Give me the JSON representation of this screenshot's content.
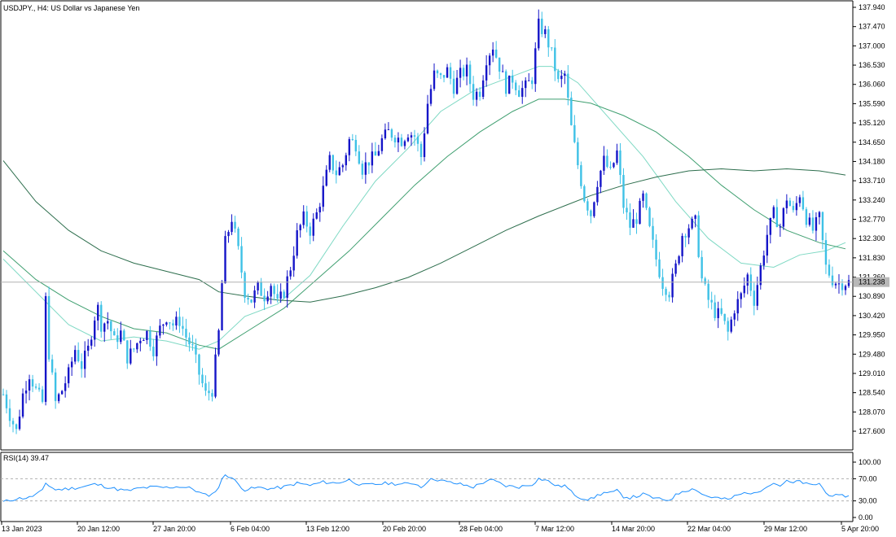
{
  "chart_data": [
    {
      "type": "candlestick",
      "title": "USDJPY., H4:  US Dollar vs Japanese Yen",
      "symbol": "USDJPY.",
      "timeframe": "H4",
      "ylim": [
        127.2,
        138.2
      ],
      "y_ticks": [
        "137.940",
        "137.470",
        "137.000",
        "136.530",
        "136.060",
        "135.590",
        "135.120",
        "134.650",
        "134.180",
        "133.710",
        "133.240",
        "132.770",
        "132.300",
        "131.830",
        "131.360",
        "130.890",
        "130.420",
        "129.950",
        "129.480",
        "129.010",
        "128.540",
        "128.070",
        "127.600"
      ],
      "current_price": "131.238",
      "x_labels": [
        "13 Jan 2023",
        "20 Jan 12:00",
        "27 Jan 20:00",
        "6 Feb 04:00",
        "13 Feb 12:00",
        "20 Feb 20:00",
        "28 Feb 04:00",
        "7 Mar 12:00",
        "14 Mar 20:00",
        "22 Mar 04:00",
        "29 Mar 12:00",
        "5 Apr 20:00"
      ],
      "grid": false,
      "close_path": [
        [
          0,
          128.5
        ],
        [
          2,
          128.0
        ],
        [
          4,
          127.6
        ],
        [
          6,
          128.5
        ],
        [
          8,
          129.0
        ],
        [
          10,
          128.6
        ],
        [
          12,
          128.3
        ],
        [
          13,
          130.8
        ],
        [
          14,
          129.5
        ],
        [
          16,
          128.3
        ],
        [
          18,
          128.6
        ],
        [
          20,
          129.0
        ],
        [
          22,
          129.6
        ],
        [
          24,
          129.2
        ],
        [
          26,
          129.6
        ],
        [
          28,
          130.4
        ],
        [
          29,
          130.6
        ],
        [
          30,
          130.2
        ],
        [
          32,
          130.3
        ],
        [
          34,
          129.8
        ],
        [
          36,
          130.0
        ],
        [
          38,
          129.4
        ],
        [
          40,
          129.6
        ],
        [
          42,
          129.9
        ],
        [
          44,
          130.0
        ],
        [
          46,
          129.6
        ],
        [
          48,
          130.1
        ],
        [
          50,
          130.4
        ],
        [
          52,
          130.2
        ],
        [
          54,
          130.3
        ],
        [
          56,
          129.9
        ],
        [
          58,
          129.6
        ],
        [
          60,
          129.0
        ],
        [
          62,
          128.5
        ],
        [
          64,
          128.6
        ],
        [
          66,
          130.0
        ],
        [
          67,
          131.2
        ],
        [
          68,
          132.2
        ],
        [
          70,
          132.8
        ],
        [
          72,
          132.0
        ],
        [
          74,
          131.0
        ],
        [
          76,
          130.8
        ],
        [
          78,
          131.1
        ],
        [
          80,
          130.9
        ],
        [
          82,
          131.2
        ],
        [
          84,
          130.7
        ],
        [
          86,
          131.0
        ],
        [
          88,
          131.6
        ],
        [
          90,
          132.4
        ],
        [
          92,
          132.8
        ],
        [
          94,
          132.5
        ],
        [
          96,
          132.9
        ],
        [
          98,
          133.5
        ],
        [
          100,
          134.2
        ],
        [
          102,
          133.9
        ],
        [
          104,
          134.1
        ],
        [
          106,
          134.7
        ],
        [
          108,
          134.6
        ],
        [
          110,
          134.0
        ],
        [
          112,
          134.2
        ],
        [
          114,
          134.3
        ],
        [
          116,
          134.7
        ],
        [
          118,
          134.9
        ],
        [
          120,
          134.8
        ],
        [
          122,
          134.7
        ],
        [
          124,
          134.9
        ],
        [
          126,
          134.8
        ],
        [
          128,
          134.3
        ],
        [
          130,
          135.6
        ],
        [
          132,
          136.3
        ],
        [
          134,
          136.2
        ],
        [
          136,
          136.4
        ],
        [
          138,
          136.0
        ],
        [
          140,
          136.3
        ],
        [
          142,
          136.4
        ],
        [
          144,
          135.8
        ],
        [
          146,
          135.9
        ],
        [
          148,
          136.7
        ],
        [
          150,
          137.0
        ],
        [
          152,
          136.5
        ],
        [
          154,
          136.0
        ],
        [
          156,
          136.2
        ],
        [
          158,
          135.9
        ],
        [
          160,
          136.0
        ],
        [
          162,
          136.2
        ],
        [
          164,
          137.5
        ],
        [
          166,
          137.3
        ],
        [
          168,
          136.8
        ],
        [
          170,
          136.1
        ],
        [
          172,
          136.3
        ],
        [
          174,
          135.0
        ],
        [
          176,
          134.1
        ],
        [
          178,
          133.3
        ],
        [
          180,
          132.9
        ],
        [
          182,
          133.7
        ],
        [
          184,
          134.2
        ],
        [
          186,
          133.9
        ],
        [
          188,
          134.4
        ],
        [
          190,
          133.1
        ],
        [
          192,
          132.6
        ],
        [
          194,
          132.8
        ],
        [
          196,
          133.3
        ],
        [
          198,
          132.5
        ],
        [
          200,
          131.8
        ],
        [
          202,
          131.2
        ],
        [
          204,
          131.0
        ],
        [
          206,
          131.6
        ],
        [
          208,
          132.4
        ],
        [
          210,
          132.6
        ],
        [
          212,
          132.7
        ],
        [
          214,
          131.3
        ],
        [
          216,
          130.8
        ],
        [
          218,
          130.5
        ],
        [
          220,
          130.4
        ],
        [
          222,
          130.0
        ],
        [
          224,
          130.6
        ],
        [
          226,
          130.9
        ],
        [
          228,
          131.4
        ],
        [
          230,
          130.8
        ],
        [
          232,
          131.6
        ],
        [
          234,
          132.4
        ],
        [
          236,
          132.9
        ],
        [
          238,
          132.6
        ],
        [
          240,
          133.3
        ],
        [
          242,
          132.9
        ],
        [
          244,
          133.4
        ],
        [
          246,
          132.8
        ],
        [
          248,
          132.5
        ],
        [
          250,
          132.8
        ],
        [
          252,
          131.6
        ],
        [
          254,
          131.3
        ],
        [
          256,
          131.2
        ],
        [
          258,
          131.23
        ]
      ],
      "moving_averages": [
        {
          "period": "fast",
          "color": "#7fd9c4",
          "points": [
            [
              0,
              131.8
            ],
            [
              10,
              131.0
            ],
            [
              20,
              130.2
            ],
            [
              30,
              129.8
            ],
            [
              40,
              129.9
            ],
            [
              50,
              129.8
            ],
            [
              60,
              129.6
            ],
            [
              66,
              129.8
            ],
            [
              74,
              130.4
            ],
            [
              84,
              130.7
            ],
            [
              94,
              131.4
            ],
            [
              104,
              132.6
            ],
            [
              114,
              133.7
            ],
            [
              124,
              134.5
            ],
            [
              134,
              135.4
            ],
            [
              144,
              135.9
            ],
            [
              154,
              136.2
            ],
            [
              164,
              136.5
            ],
            [
              168,
              136.5
            ],
            [
              176,
              136.1
            ],
            [
              186,
              135.2
            ],
            [
              196,
              134.3
            ],
            [
              206,
              133.2
            ],
            [
              216,
              132.3
            ],
            [
              226,
              131.7
            ],
            [
              236,
              131.6
            ],
            [
              244,
              131.9
            ],
            [
              252,
              132.0
            ],
            [
              258,
              132.2
            ]
          ]
        },
        {
          "period": "medium",
          "color": "#3f9f70",
          "points": [
            [
              0,
              132.0
            ],
            [
              10,
              131.3
            ],
            [
              20,
              130.8
            ],
            [
              30,
              130.4
            ],
            [
              40,
              130.1
            ],
            [
              50,
              130.0
            ],
            [
              60,
              129.7
            ],
            [
              66,
              129.6
            ],
            [
              76,
              130.1
            ],
            [
              86,
              130.6
            ],
            [
              96,
              131.3
            ],
            [
              106,
              132.0
            ],
            [
              116,
              132.8
            ],
            [
              126,
              133.6
            ],
            [
              136,
              134.3
            ],
            [
              146,
              134.9
            ],
            [
              156,
              135.4
            ],
            [
              164,
              135.7
            ],
            [
              172,
              135.7
            ],
            [
              180,
              135.6
            ],
            [
              190,
              135.3
            ],
            [
              200,
              134.9
            ],
            [
              210,
              134.3
            ],
            [
              220,
              133.6
            ],
            [
              230,
              133.0
            ],
            [
              240,
              132.5
            ],
            [
              250,
              132.2
            ],
            [
              258,
              132.05
            ]
          ]
        },
        {
          "period": "slow",
          "color": "#2d6e4d",
          "points": [
            [
              0,
              134.2
            ],
            [
              10,
              133.2
            ],
            [
              20,
              132.5
            ],
            [
              30,
              132.0
            ],
            [
              40,
              131.7
            ],
            [
              50,
              131.5
            ],
            [
              60,
              131.3
            ],
            [
              66,
              131.0
            ],
            [
              74,
              130.9
            ],
            [
              84,
              130.8
            ],
            [
              94,
              130.75
            ],
            [
              104,
              130.9
            ],
            [
              114,
              131.1
            ],
            [
              124,
              131.35
            ],
            [
              134,
              131.7
            ],
            [
              144,
              132.1
            ],
            [
              154,
              132.5
            ],
            [
              164,
              132.85
            ],
            [
              172,
              133.1
            ],
            [
              180,
              133.35
            ],
            [
              190,
              133.6
            ],
            [
              200,
              133.8
            ],
            [
              210,
              133.95
            ],
            [
              220,
              134.0
            ],
            [
              230,
              133.95
            ],
            [
              240,
              134.0
            ],
            [
              250,
              133.95
            ],
            [
              258,
              133.85
            ]
          ]
        }
      ],
      "bar_count": 260
    },
    {
      "type": "line",
      "title": "RSI(14) 39.47",
      "indicator": "RSI",
      "period": 14,
      "last_value": 39.47,
      "ylim": [
        0,
        100
      ],
      "y_ticks": [
        "100.00",
        "70.00",
        "30.00",
        "0.00"
      ],
      "levels": [
        70,
        30
      ],
      "color": "#1e90ff",
      "points": [
        [
          0,
          28
        ],
        [
          4,
          34
        ],
        [
          8,
          36
        ],
        [
          12,
          48
        ],
        [
          13,
          62
        ],
        [
          16,
          50
        ],
        [
          20,
          52
        ],
        [
          24,
          55
        ],
        [
          28,
          60
        ],
        [
          30,
          58
        ],
        [
          34,
          52
        ],
        [
          38,
          48
        ],
        [
          42,
          53
        ],
        [
          46,
          55
        ],
        [
          50,
          54
        ],
        [
          54,
          56
        ],
        [
          58,
          52
        ],
        [
          60,
          45
        ],
        [
          62,
          40
        ],
        [
          64,
          42
        ],
        [
          66,
          55
        ],
        [
          67,
          68
        ],
        [
          68,
          78
        ],
        [
          70,
          72
        ],
        [
          72,
          60
        ],
        [
          74,
          50
        ],
        [
          78,
          54
        ],
        [
          82,
          52
        ],
        [
          86,
          55
        ],
        [
          90,
          62
        ],
        [
          94,
          58
        ],
        [
          98,
          64
        ],
        [
          102,
          62
        ],
        [
          106,
          68
        ],
        [
          110,
          58
        ],
        [
          114,
          60
        ],
        [
          118,
          62
        ],
        [
          122,
          60
        ],
        [
          126,
          62
        ],
        [
          128,
          55
        ],
        [
          130,
          66
        ],
        [
          132,
          70
        ],
        [
          136,
          64
        ],
        [
          140,
          60
        ],
        [
          144,
          55
        ],
        [
          148,
          66
        ],
        [
          150,
          67
        ],
        [
          154,
          57
        ],
        [
          158,
          55
        ],
        [
          162,
          60
        ],
        [
          164,
          70
        ],
        [
          166,
          68
        ],
        [
          168,
          62
        ],
        [
          170,
          56
        ],
        [
          172,
          58
        ],
        [
          174,
          46
        ],
        [
          176,
          38
        ],
        [
          178,
          34
        ],
        [
          180,
          33
        ],
        [
          182,
          40
        ],
        [
          184,
          45
        ],
        [
          186,
          44
        ],
        [
          188,
          48
        ],
        [
          190,
          38
        ],
        [
          192,
          36
        ],
        [
          194,
          38
        ],
        [
          196,
          42
        ],
        [
          198,
          38
        ],
        [
          200,
          34
        ],
        [
          202,
          32
        ],
        [
          204,
          32
        ],
        [
          206,
          40
        ],
        [
          208,
          48
        ],
        [
          210,
          50
        ],
        [
          212,
          52
        ],
        [
          214,
          42
        ],
        [
          216,
          38
        ],
        [
          218,
          36
        ],
        [
          220,
          34
        ],
        [
          222,
          32
        ],
        [
          224,
          38
        ],
        [
          226,
          42
        ],
        [
          228,
          46
        ],
        [
          230,
          42
        ],
        [
          232,
          50
        ],
        [
          234,
          58
        ],
        [
          236,
          62
        ],
        [
          238,
          58
        ],
        [
          240,
          65
        ],
        [
          242,
          62
        ],
        [
          244,
          66
        ],
        [
          246,
          60
        ],
        [
          248,
          58
        ],
        [
          250,
          62
        ],
        [
          252,
          44
        ],
        [
          254,
          40
        ],
        [
          256,
          38
        ],
        [
          258,
          39.47
        ]
      ]
    }
  ]
}
